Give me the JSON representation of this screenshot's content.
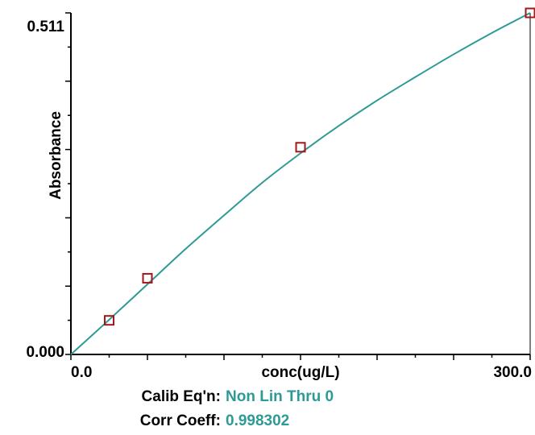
{
  "chart_data": {
    "type": "scatter",
    "title": "",
    "xlabel": "conc(ug/L)",
    "ylabel": "Absorbance",
    "xlim": [
      0,
      300
    ],
    "ylim": [
      0,
      0.511
    ],
    "x_tick_labels": [
      "0.0",
      "300.0"
    ],
    "y_tick_labels": [
      "0.000",
      "0.511"
    ],
    "grid": false,
    "series": [
      {
        "kind": "points",
        "x": [
          25,
          50,
          150,
          300
        ],
        "y": [
          0.051,
          0.114,
          0.31,
          0.511
        ],
        "marker": "open-square",
        "color": "#a01818"
      },
      {
        "kind": "fit-curve",
        "x": [
          0,
          25,
          50,
          75,
          100,
          125,
          150,
          175,
          200,
          225,
          250,
          275,
          300
        ],
        "y": [
          0,
          0.052,
          0.105,
          0.158,
          0.208,
          0.257,
          0.301,
          0.342,
          0.38,
          0.415,
          0.449,
          0.481,
          0.511
        ],
        "color": "#2e9a96"
      }
    ],
    "annotations": [
      {
        "label": "Calib Eq'n:",
        "value": "Non Lin Thru 0"
      },
      {
        "label": "Corr Coeff:",
        "value": "0.998302"
      }
    ]
  },
  "colors": {
    "axis": "#000000",
    "curve": "#2e9a96",
    "marker": "#a01818",
    "annotation_value": "#2e9a96"
  }
}
